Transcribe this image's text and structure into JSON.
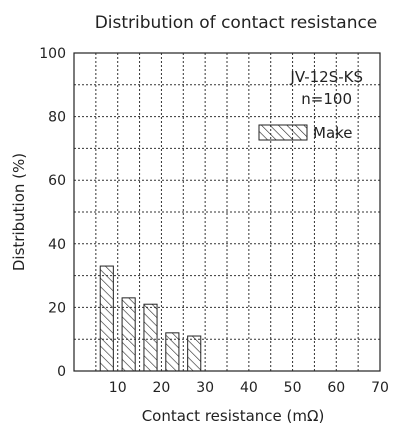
{
  "chart_data": {
    "type": "bar",
    "title": "Distribution of contact resistance",
    "xlabel": "Contact resistance (mΩ)",
    "ylabel": "Distribution (%)",
    "xlim": [
      0,
      70
    ],
    "ylim": [
      0,
      100
    ],
    "x_ticks": [
      10,
      20,
      30,
      40,
      50,
      60,
      70
    ],
    "y_ticks": [
      0,
      20,
      40,
      60,
      80,
      100
    ],
    "x_tick_labels": [
      "10",
      "20",
      "30",
      "40",
      "50",
      "60",
      "70"
    ],
    "y_tick_labels": [
      "0",
      "20",
      "40",
      "60",
      "80",
      "100"
    ],
    "grid": true,
    "annotation_lines": [
      "JV-12S-KS",
      "n=100"
    ],
    "legend": "top-right",
    "series": [
      {
        "name": "Make",
        "fill": "hatched",
        "x": [
          7.5,
          12.5,
          17.5,
          22.5,
          27.5
        ],
        "values": [
          33,
          23,
          21,
          12,
          11
        ]
      }
    ]
  }
}
